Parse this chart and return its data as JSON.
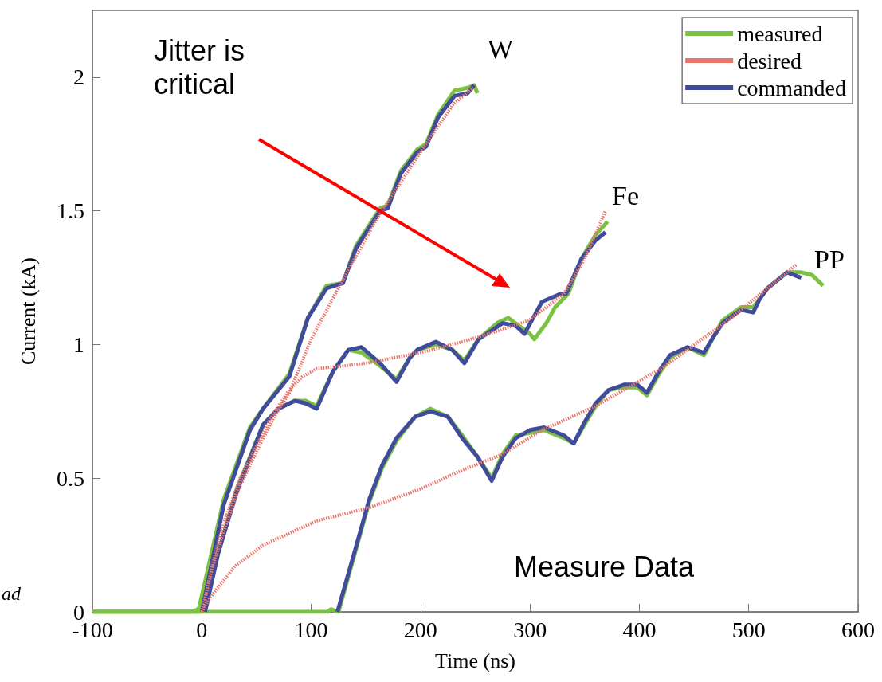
{
  "chart_data": {
    "type": "line",
    "xlabel": "Time (ns)",
    "ylabel": "Current (kA)",
    "xlim": [
      -100,
      600
    ],
    "xticks": [
      -100,
      0,
      100,
      200,
      300,
      400,
      500,
      600
    ],
    "ylim": [
      0,
      2.25
    ],
    "yticks": [
      0,
      0.5,
      1,
      1.5,
      2
    ],
    "grid": false,
    "legend": "top right",
    "marker": "none",
    "annotations": [
      "W",
      "Fe",
      "PP",
      "Jitter is critical",
      "Measure Data",
      "ad"
    ],
    "series": [
      {
        "name": "measured",
        "color": "#7cc242",
        "line_style": "solid",
        "x": [
          -100,
          -50,
          -10,
          -3,
          0,
          20,
          44,
          56,
          80,
          97,
          114,
          129,
          141,
          163,
          170,
          182,
          197,
          205,
          216,
          231,
          243,
          249,
          252
        ],
        "values": [
          0,
          0,
          0,
          0.01,
          0.06,
          0.42,
          0.69,
          0.76,
          0.89,
          1.1,
          1.22,
          1.23,
          1.37,
          1.51,
          1.52,
          1.65,
          1.73,
          1.75,
          1.86,
          1.95,
          1.96,
          1.97,
          1.94
        ]
      },
      {
        "color": "#7cc242",
        "line_style": "solid",
        "x": [
          -100,
          -10,
          0,
          3,
          15,
          32,
          56,
          70,
          85,
          95,
          105,
          120,
          134,
          146,
          163,
          178,
          190,
          197,
          214,
          229,
          240,
          253,
          270,
          280,
          290,
          300,
          304,
          315,
          323,
          335,
          347,
          360,
          371
        ],
        "values": [
          0,
          0,
          0,
          0.02,
          0.22,
          0.46,
          0.7,
          0.76,
          0.79,
          0.79,
          0.77,
          0.9,
          0.98,
          0.97,
          0.92,
          0.87,
          0.95,
          0.98,
          1.0,
          0.98,
          0.94,
          1.02,
          1.08,
          1.1,
          1.07,
          1.04,
          1.02,
          1.08,
          1.14,
          1.19,
          1.32,
          1.41,
          1.46
        ]
      },
      {
        "color": "#7cc242",
        "line_style": "solid",
        "x": [
          -100,
          0,
          50,
          115,
          118,
          125,
          140,
          153,
          165,
          178,
          195,
          209,
          225,
          238,
          252,
          265,
          275,
          287,
          300,
          313,
          331,
          340,
          350,
          360,
          372,
          386,
          398,
          407,
          418,
          428,
          444,
          459,
          468,
          476,
          493,
          504,
          510,
          517,
          535,
          548,
          558,
          568
        ],
        "values": [
          0,
          0,
          0,
          0,
          0.01,
          0,
          0.22,
          0.41,
          0.54,
          0.64,
          0.73,
          0.76,
          0.73,
          0.66,
          0.58,
          0.5,
          0.59,
          0.66,
          0.67,
          0.68,
          0.65,
          0.63,
          0.7,
          0.77,
          0.83,
          0.84,
          0.84,
          0.81,
          0.89,
          0.95,
          0.99,
          0.96,
          1.03,
          1.09,
          1.14,
          1.14,
          1.17,
          1.21,
          1.27,
          1.27,
          1.26,
          1.22
        ]
      },
      {
        "name": "desired",
        "color": "#e8746a",
        "line_style": "dotted",
        "x": [
          0,
          10,
          20,
          35,
          50,
          65,
          80,
          100,
          130,
          160,
          200,
          230,
          248
        ],
        "values": [
          0,
          0.17,
          0.3,
          0.47,
          0.6,
          0.72,
          0.82,
          1.02,
          1.25,
          1.47,
          1.72,
          1.9,
          1.96
        ]
      },
      {
        "color": "#e8746a",
        "line_style": "dotted",
        "x": [
          0,
          10,
          20,
          35,
          50,
          65,
          80,
          92,
          105,
          130,
          150,
          200,
          238,
          270,
          299,
          331,
          350,
          369
        ],
        "values": [
          0,
          0.18,
          0.33,
          0.5,
          0.62,
          0.74,
          0.83,
          0.88,
          0.91,
          0.92,
          0.93,
          0.97,
          1.01,
          1.05,
          1.09,
          1.19,
          1.32,
          1.5
        ]
      },
      {
        "color": "#e8746a",
        "line_style": "dotted",
        "x": [
          0,
          7,
          30,
          56,
          105,
          153,
          200,
          238,
          275,
          311,
          360,
          420,
          481,
          544
        ],
        "values": [
          0,
          0.05,
          0.17,
          0.25,
          0.34,
          0.39,
          0.46,
          0.53,
          0.59,
          0.68,
          0.77,
          0.91,
          1.09,
          1.3
        ]
      },
      {
        "name": "commanded",
        "color": "#414b9b",
        "line_style": "solid",
        "x": [
          0,
          20,
          44,
          56,
          80,
          97,
          114,
          129,
          141,
          163,
          170,
          182,
          197,
          205,
          216,
          231,
          243,
          249
        ],
        "values": [
          0,
          0.4,
          0.68,
          0.76,
          0.88,
          1.1,
          1.21,
          1.23,
          1.36,
          1.5,
          1.51,
          1.64,
          1.72,
          1.74,
          1.85,
          1.93,
          1.94,
          1.97
        ]
      },
      {
        "color": "#414b9b",
        "line_style": "solid",
        "x": [
          3,
          15,
          32,
          56,
          70,
          85,
          95,
          105,
          120,
          134,
          146,
          163,
          178,
          190,
          197,
          214,
          229,
          240,
          253,
          275,
          287,
          295,
          311,
          328,
          333,
          347,
          360,
          369
        ],
        "values": [
          0,
          0.22,
          0.45,
          0.7,
          0.76,
          0.79,
          0.78,
          0.76,
          0.9,
          0.98,
          0.99,
          0.93,
          0.86,
          0.95,
          0.98,
          1.01,
          0.98,
          0.93,
          1.02,
          1.08,
          1.07,
          1.04,
          1.16,
          1.19,
          1.19,
          1.32,
          1.39,
          1.42
        ]
      },
      {
        "color": "#414b9b",
        "line_style": "solid",
        "x": [
          124,
          140,
          153,
          165,
          178,
          195,
          209,
          225,
          238,
          252,
          265,
          275,
          287,
          300,
          313,
          331,
          340,
          350,
          360,
          372,
          386,
          398,
          407,
          418,
          428,
          444,
          459,
          468,
          476,
          493,
          504,
          510,
          517,
          535,
          548
        ],
        "values": [
          0,
          0.23,
          0.42,
          0.55,
          0.65,
          0.73,
          0.75,
          0.73,
          0.65,
          0.58,
          0.49,
          0.58,
          0.65,
          0.68,
          0.69,
          0.66,
          0.63,
          0.71,
          0.78,
          0.83,
          0.85,
          0.85,
          0.82,
          0.9,
          0.96,
          0.99,
          0.97,
          1.03,
          1.08,
          1.13,
          1.12,
          1.17,
          1.21,
          1.27,
          1.25
        ]
      }
    ]
  }
}
